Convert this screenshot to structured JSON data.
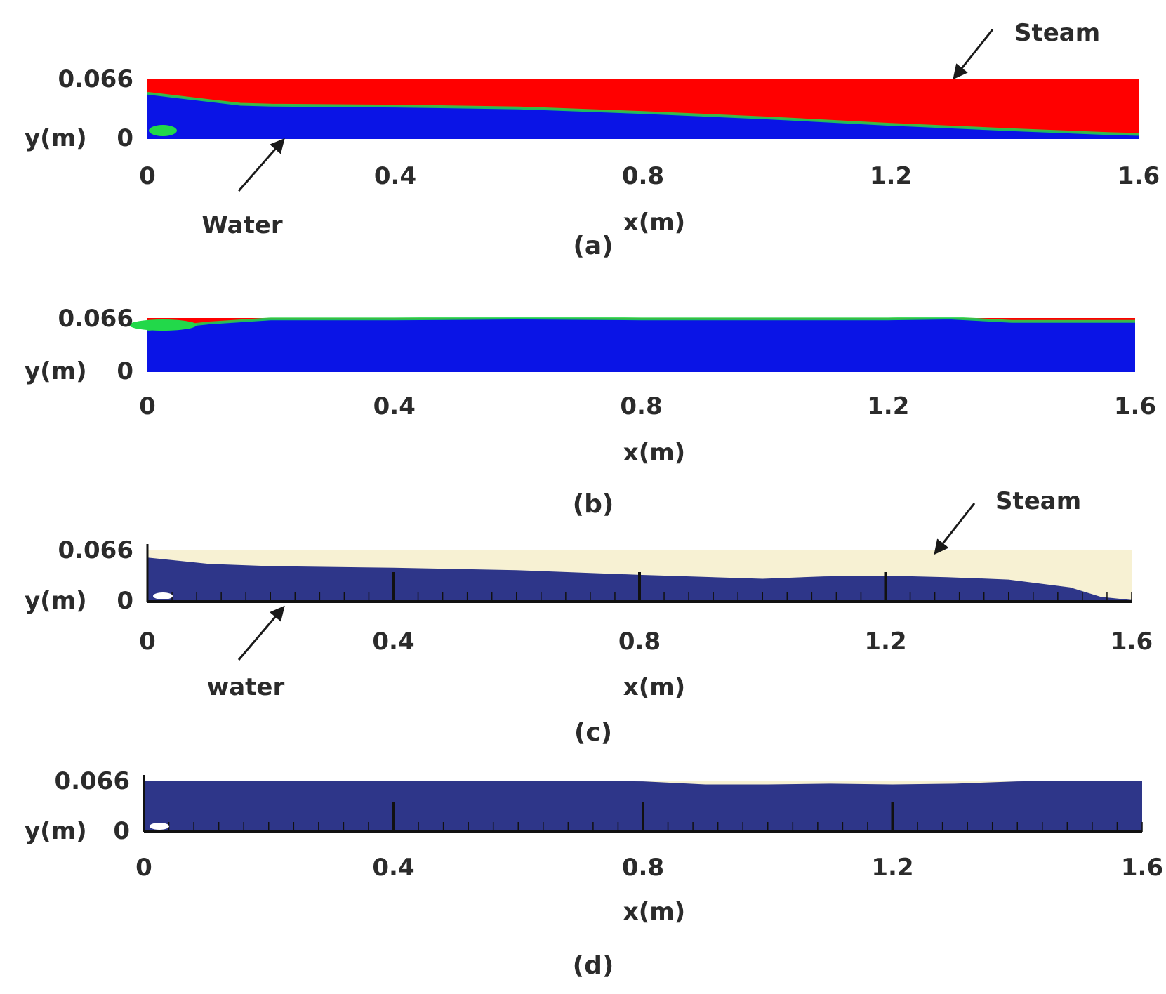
{
  "colors": {
    "steam_contour": "#ff0000",
    "water_contour": "#0a14e6",
    "interface_contour": "#22d84a",
    "steam_experiment": "#f7f1d3",
    "water_experiment": "#2e3689",
    "text": "#2b2b2b"
  },
  "chart_data": [
    {
      "type": "area",
      "caption": "(a)",
      "xlabel": "x(m)",
      "ylabel": "y(m)",
      "xlim": [
        0,
        1.6
      ],
      "ylim": [
        0,
        0.066
      ],
      "xticks": [
        "0",
        "0.4",
        "0.8",
        "1.2",
        "1.6"
      ],
      "yticks": [
        "0",
        "0.066"
      ],
      "annotations": [
        "Steam",
        "Water"
      ],
      "water_level": {
        "x": [
          0,
          0.05,
          0.1,
          0.15,
          0.2,
          0.4,
          0.6,
          0.8,
          1.0,
          1.2,
          1.4,
          1.55,
          1.6
        ],
        "y": [
          0.05,
          0.046,
          0.042,
          0.038,
          0.037,
          0.036,
          0.034,
          0.029,
          0.023,
          0.016,
          0.01,
          0.006,
          0.005
        ]
      }
    },
    {
      "type": "area",
      "caption": "(b)",
      "xlabel": "x(m)",
      "ylabel": "y(m)",
      "xlim": [
        0,
        1.6
      ],
      "ylim": [
        0,
        0.066
      ],
      "xticks": [
        "0",
        "0.4",
        "0.8",
        "1.2",
        "1.6"
      ],
      "yticks": [
        "0",
        "0.066"
      ],
      "annotations": [],
      "water_level": {
        "x": [
          0,
          0.1,
          0.2,
          0.4,
          0.6,
          0.8,
          1.0,
          1.2,
          1.3,
          1.4,
          1.5,
          1.6
        ],
        "y": [
          0.052,
          0.06,
          0.065,
          0.065,
          0.066,
          0.065,
          0.065,
          0.065,
          0.066,
          0.062,
          0.062,
          0.062
        ]
      }
    },
    {
      "type": "area",
      "caption": "(c)",
      "xlabel": "x(m)",
      "ylabel": "y(m)",
      "xlim": [
        0,
        1.6
      ],
      "ylim": [
        0,
        0.066
      ],
      "xticks": [
        "0",
        "0.4",
        "0.8",
        "1.2",
        "1.6"
      ],
      "yticks": [
        "0",
        "0.066"
      ],
      "annotations": [
        "Steam",
        "water"
      ],
      "water_level": {
        "x": [
          0,
          0.05,
          0.1,
          0.2,
          0.4,
          0.6,
          0.8,
          1.0,
          1.1,
          1.2,
          1.3,
          1.4,
          1.5,
          1.55,
          1.6
        ],
        "y": [
          0.056,
          0.052,
          0.048,
          0.045,
          0.043,
          0.04,
          0.034,
          0.029,
          0.032,
          0.033,
          0.031,
          0.028,
          0.018,
          0.006,
          0.002
        ]
      }
    },
    {
      "type": "area",
      "caption": "(d)",
      "xlabel": "x(m)",
      "ylabel": "y(m)",
      "xlim": [
        0,
        1.6
      ],
      "ylim": [
        0,
        0.066
      ],
      "xticks": [
        "0",
        "0.4",
        "0.8",
        "1.2",
        "1.6"
      ],
      "yticks": [
        "0",
        "0.066"
      ],
      "annotations": [],
      "water_level": {
        "x": [
          0,
          0.2,
          0.4,
          0.6,
          0.8,
          0.9,
          1.0,
          1.1,
          1.2,
          1.3,
          1.4,
          1.5,
          1.6
        ],
        "y": [
          0.066,
          0.066,
          0.066,
          0.066,
          0.065,
          0.061,
          0.061,
          0.062,
          0.061,
          0.062,
          0.065,
          0.066,
          0.066
        ]
      }
    }
  ]
}
